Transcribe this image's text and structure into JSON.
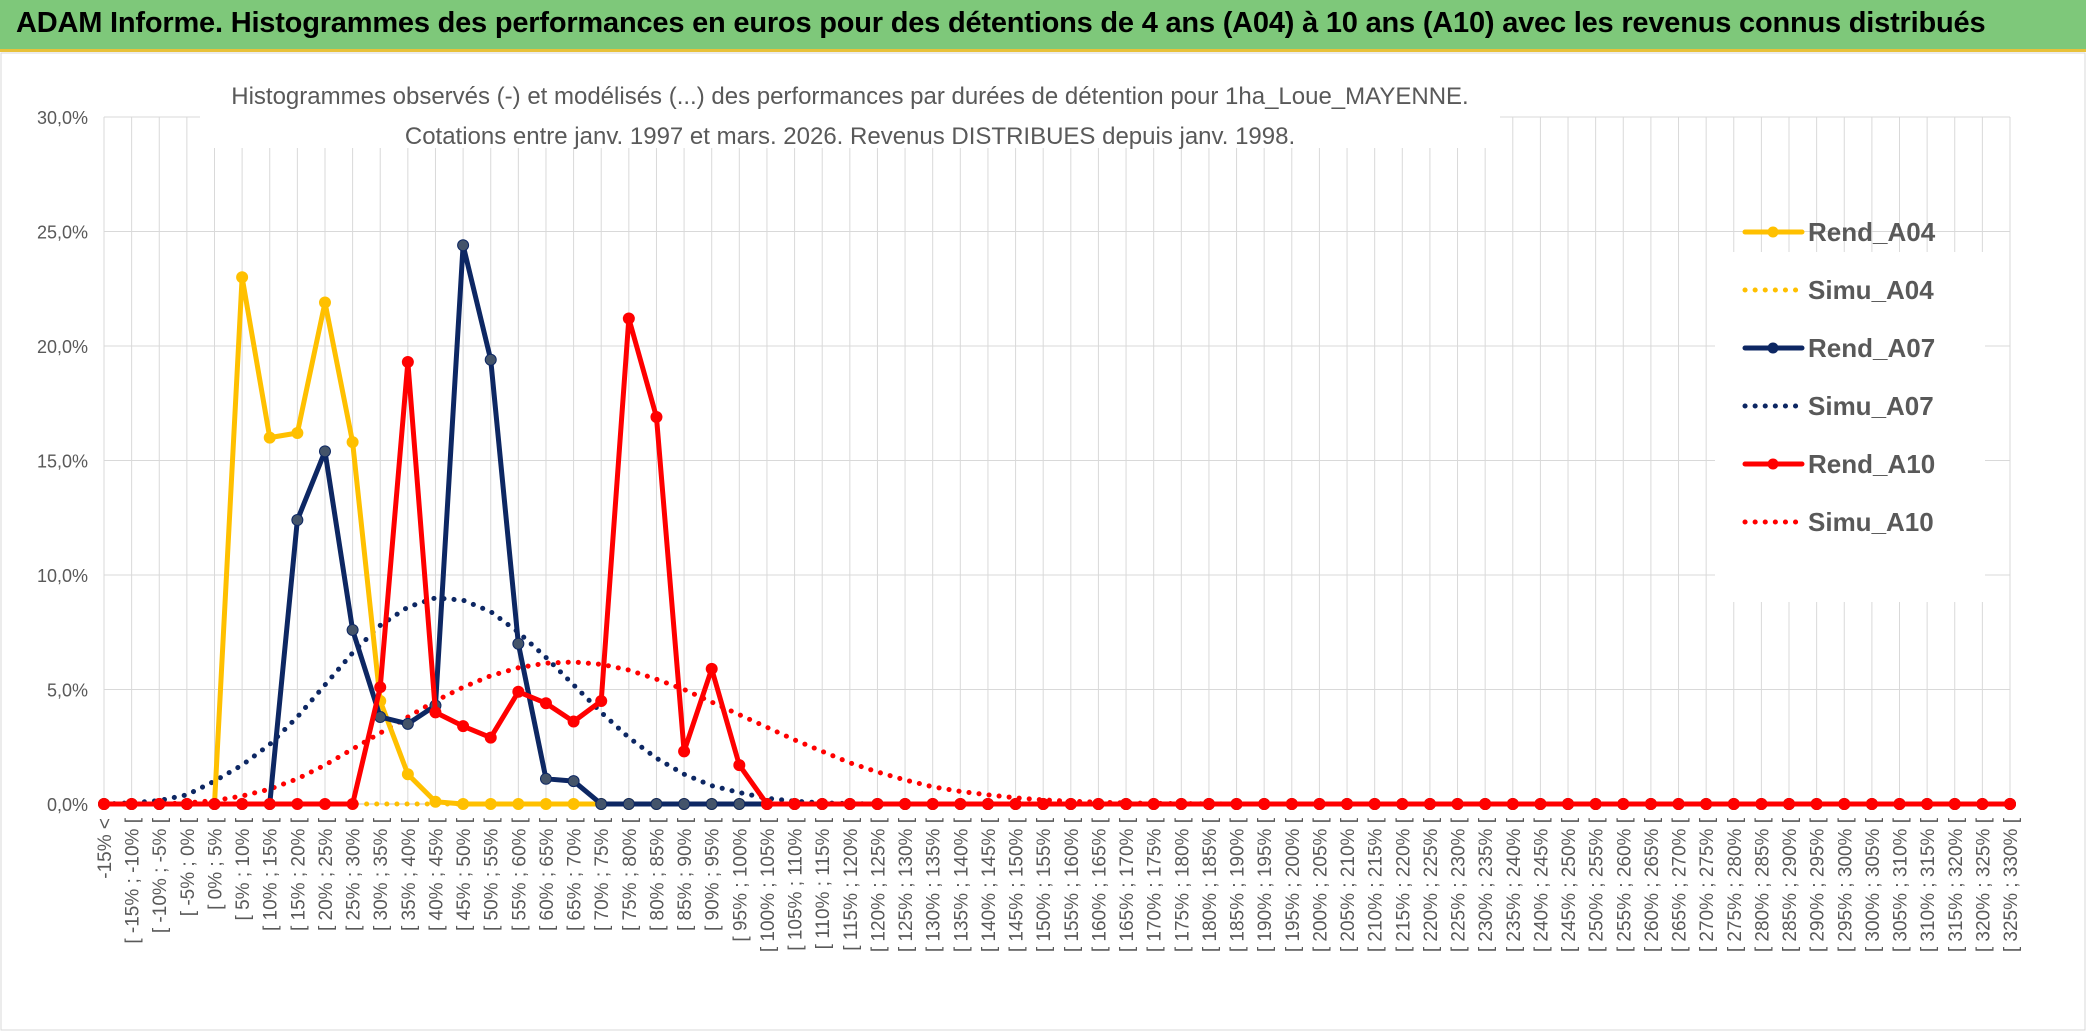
{
  "header": {
    "title": "ADAM Informe. Histogrammes des performances en euros pour des détentions de 4 ans (A04) à 10 ans (A10) avec les revenus connus distribués"
  },
  "colors": {
    "header_bg": "#7ec87a",
    "gold": "#ffc000",
    "navy": "#0d2763",
    "red": "#ff0000",
    "grid": "#d9d9d9"
  },
  "chart_data": {
    "type": "line",
    "title": "Histogrammes observés (-) et modélisés (...) des performances par durées de détention pour 1ha_Loue_MAYENNE.",
    "subtitle": "Cotations entre janv. 1997 et mars. 2026. Revenus DISTRIBUES depuis janv. 1998.",
    "xlabel": "",
    "ylabel": "",
    "ylim": [
      0,
      30
    ],
    "yticks": [
      "0,0%",
      "5,0%",
      "10,0%",
      "15,0%",
      "20,0%",
      "25,0%",
      "30,0%"
    ],
    "grid": true,
    "legend_position": "right",
    "categories": [
      "-15% <",
      "[ -15% ; -10% [",
      "[ -10% ; -5% [",
      "[ -5% ; 0% [",
      "[ 0% ; 5% [",
      "[ 5% ; 10% [",
      "[ 10% ; 15% [",
      "[ 15% ; 20% [",
      "[ 20% ; 25% [",
      "[ 25% ; 30% [",
      "[ 30% ; 35% [",
      "[ 35% ; 40% [",
      "[ 40% ; 45% [",
      "[ 45% ; 50% [",
      "[ 50% ; 55% [",
      "[ 55% ; 60% [",
      "[ 60% ; 65% [",
      "[ 65% ; 70% [",
      "[ 70% ; 75% [",
      "[ 75% ; 80% [",
      "[ 80% ; 85% [",
      "[ 85% ; 90% [",
      "[ 90% ; 95% [",
      "[ 95% ; 100% [",
      "[ 100% ; 105% [",
      "[ 105% ; 110% [",
      "[ 110% ; 115% [",
      "[ 115% ; 120% [",
      "[ 120% ; 125% [",
      "[ 125% ; 130% [",
      "[ 130% ; 135% [",
      "[ 135% ; 140% [",
      "[ 140% ; 145% [",
      "[ 145% ; 150% [",
      "[ 150% ; 155% [",
      "[ 155% ; 160% [",
      "[ 160% ; 165% [",
      "[ 165% ; 170% [",
      "[ 170% ; 175% [",
      "[ 175% ; 180% [",
      "[ 180% ; 185% [",
      "[ 185% ; 190% [",
      "[ 190% ; 195% [",
      "[ 195% ; 200% [",
      "[ 200% ; 205% [",
      "[ 205% ; 210% [",
      "[ 210% ; 215% [",
      "[ 215% ; 220% [",
      "[ 220% ; 225% [",
      "[ 225% ; 230% [",
      "[ 230% ; 235% [",
      "[ 235% ; 240% [",
      "[ 240% ; 245% [",
      "[ 245% ; 250% [",
      "[ 250% ; 255% [",
      "[ 255% ; 260% [",
      "[ 260% ; 265% [",
      "[ 265% ; 270% [",
      "[ 270% ; 275% [",
      "[ 275% ; 280% [",
      "[ 280% ; 285% [",
      "[ 285% ; 290% [",
      "[ 290% ; 295% [",
      "[ 295% ; 300% [",
      "[ 300% ; 305% [",
      "[ 305% ; 310% [",
      "[ 310% ; 315% [",
      "[ 315% ; 320% [",
      "[ 320% ; 325% [",
      "[ 325% ; 330% ["
    ],
    "series": [
      {
        "name": "Rend_A04",
        "style": "solid",
        "markers": true,
        "color": "#ffc000",
        "values": [
          0,
          0,
          0,
          0,
          0,
          23.0,
          16.0,
          16.2,
          21.9,
          15.8,
          4.5,
          1.3,
          0.1,
          0,
          0,
          0,
          0,
          0,
          0,
          0,
          0,
          0,
          0,
          0,
          0,
          0,
          0,
          0,
          0,
          0,
          0,
          0,
          0,
          0,
          0,
          0,
          0,
          0,
          0,
          0,
          0,
          0,
          0,
          0,
          0,
          0,
          0,
          0,
          0,
          0,
          0,
          0,
          0,
          0,
          0,
          0,
          0,
          0,
          0,
          0,
          0,
          0,
          0,
          0,
          0,
          0,
          0,
          0,
          0,
          0
        ]
      },
      {
        "name": "Simu_A04",
        "style": "dotted",
        "markers": false,
        "color": "#ffc000",
        "values": [
          0,
          0,
          0,
          0,
          0,
          0,
          0,
          0,
          0,
          0,
          0,
          0,
          0,
          0,
          0,
          0,
          0,
          0,
          0,
          0,
          0,
          0,
          0,
          0,
          0,
          0,
          0,
          0,
          0,
          0,
          0,
          0,
          0,
          0,
          0,
          0,
          0,
          0,
          0,
          0,
          0,
          0,
          0,
          0,
          0,
          0,
          0,
          0,
          0,
          0,
          0,
          0,
          0,
          0,
          0,
          0,
          0,
          0,
          0,
          0,
          0,
          0,
          0,
          0,
          0,
          0,
          0,
          0,
          0,
          0
        ]
      },
      {
        "name": "Rend_A07",
        "style": "solid",
        "markers": true,
        "color": "#0d2763",
        "values": [
          0,
          0,
          0,
          0,
          0,
          0,
          0,
          12.4,
          15.4,
          7.6,
          3.8,
          3.5,
          4.3,
          24.4,
          19.4,
          7.0,
          1.1,
          1.0,
          0,
          0,
          0,
          0,
          0,
          0,
          0,
          0,
          0,
          0,
          0,
          0,
          0,
          0,
          0,
          0,
          0,
          0,
          0,
          0,
          0,
          0,
          0,
          0,
          0,
          0,
          0,
          0,
          0,
          0,
          0,
          0,
          0,
          0,
          0,
          0,
          0,
          0,
          0,
          0,
          0,
          0,
          0,
          0,
          0,
          0,
          0,
          0,
          0,
          0,
          0,
          0
        ]
      },
      {
        "name": "Simu_A07",
        "style": "dotted",
        "markers": false,
        "color": "#0d2763",
        "values": [
          0,
          0.05,
          0.15,
          0.4,
          1.0,
          1.7,
          2.6,
          3.8,
          5.2,
          6.6,
          7.8,
          8.6,
          9.0,
          8.9,
          8.4,
          7.5,
          6.4,
          5.2,
          4.0,
          2.9,
          2.0,
          1.3,
          0.8,
          0.5,
          0.25,
          0.12,
          0.05,
          0.02,
          0,
          0,
          0,
          0,
          0,
          0,
          0,
          0,
          0,
          0,
          0,
          0,
          0,
          0,
          0,
          0,
          0,
          0,
          0,
          0,
          0,
          0,
          0,
          0,
          0,
          0,
          0,
          0,
          0,
          0,
          0,
          0,
          0,
          0,
          0,
          0,
          0,
          0,
          0,
          0,
          0,
          0
        ]
      },
      {
        "name": "Rend_A10",
        "style": "solid",
        "markers": true,
        "color": "#ff0000",
        "values": [
          0,
          0,
          0,
          0,
          0,
          0,
          0,
          0,
          0,
          0,
          5.1,
          19.3,
          4.0,
          3.4,
          2.9,
          4.9,
          4.4,
          3.6,
          4.5,
          21.2,
          16.9,
          2.3,
          5.9,
          1.7,
          0,
          0,
          0,
          0,
          0,
          0,
          0,
          0,
          0,
          0,
          0,
          0,
          0,
          0,
          0,
          0,
          0,
          0,
          0,
          0,
          0,
          0,
          0,
          0,
          0,
          0,
          0,
          0,
          0,
          0,
          0,
          0,
          0,
          0,
          0,
          0,
          0,
          0,
          0,
          0,
          0,
          0,
          0,
          0,
          0,
          0
        ]
      },
      {
        "name": "Simu_A10",
        "style": "dotted",
        "markers": false,
        "color": "#ff0000",
        "values": [
          0,
          0,
          0,
          0.05,
          0.15,
          0.35,
          0.65,
          1.1,
          1.7,
          2.4,
          3.1,
          3.8,
          4.5,
          5.1,
          5.6,
          5.95,
          6.15,
          6.2,
          6.1,
          5.85,
          5.45,
          5.0,
          4.45,
          3.9,
          3.35,
          2.8,
          2.3,
          1.8,
          1.4,
          1.05,
          0.75,
          0.55,
          0.4,
          0.27,
          0.18,
          0.12,
          0.08,
          0.05,
          0.03,
          0.02,
          0.01,
          0,
          0,
          0,
          0,
          0,
          0,
          0,
          0,
          0,
          0,
          0,
          0,
          0,
          0,
          0,
          0,
          0,
          0,
          0,
          0,
          0,
          0,
          0,
          0,
          0,
          0,
          0,
          0,
          0
        ]
      }
    ]
  }
}
